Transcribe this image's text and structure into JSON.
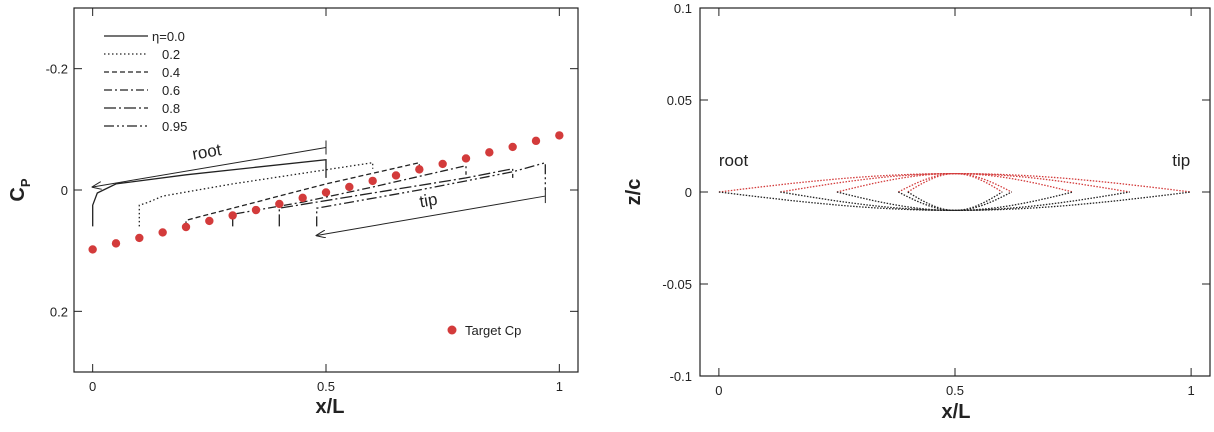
{
  "chart_data": [
    {
      "type": "line",
      "xlabel": "x/L",
      "ylabel": "C",
      "ylabel_sub": "P",
      "xlim": [
        -0.04,
        1.04
      ],
      "ylim": [
        -0.3,
        0.3
      ],
      "y_inverted": true,
      "xticks": [
        0,
        0.5,
        1
      ],
      "xtick_labels": [
        "0",
        "0.5",
        "1"
      ],
      "yticks": [
        -0.2,
        0,
        0.2
      ],
      "ytick_labels": [
        "-0.2",
        "0",
        "0.2"
      ],
      "grid": false,
      "legend_placement": "top-left",
      "series": [
        {
          "name": "η=0.0",
          "dash": "solid",
          "x": [
            0,
            0,
            0.01,
            0.05,
            0.2,
            0.5,
            0.5
          ],
          "y": [
            0.06,
            0.025,
            0.005,
            -0.01,
            -0.025,
            -0.05,
            -0.02
          ]
        },
        {
          "name": "0.2",
          "dash": "dot",
          "x": [
            0.1,
            0.1,
            0.12,
            0.15,
            0.3,
            0.6,
            0.6
          ],
          "y": [
            0.06,
            0.025,
            0.02,
            0.01,
            -0.01,
            -0.045,
            -0.035
          ]
        },
        {
          "name": "0.4",
          "dash": "dash",
          "x": [
            0.2,
            0.2,
            0.35,
            0.5,
            0.7,
            0.7
          ],
          "y": [
            0.06,
            0.05,
            0.02,
            -0.01,
            -0.045,
            -0.03
          ]
        },
        {
          "name": "0.6",
          "dash": "dashdot",
          "x": [
            0.3,
            0.3,
            0.45,
            0.6,
            0.8,
            0.8
          ],
          "y": [
            0.06,
            0.04,
            0.02,
            -0.005,
            -0.04,
            -0.025
          ]
        },
        {
          "name": "0.8",
          "dash": "longdashdot",
          "x": [
            0.4,
            0.4,
            0.6,
            0.8,
            0.9,
            0.9
          ],
          "y": [
            0.06,
            0.03,
            0.005,
            -0.02,
            -0.035,
            -0.02
          ]
        },
        {
          "name": "0.95",
          "dash": "dashdotdot",
          "x": [
            0.48,
            0.48,
            0.7,
            0.9,
            0.97,
            0.97
          ],
          "y": [
            0.06,
            0.03,
            0.0,
            -0.03,
            -0.045,
            0.0
          ]
        }
      ],
      "target": {
        "name": "Target Cp",
        "color": "#d33b3b",
        "x": [
          0,
          0.05,
          0.1,
          0.15,
          0.2,
          0.25,
          0.3,
          0.35,
          0.4,
          0.45,
          0.5,
          0.55,
          0.6,
          0.65,
          0.7,
          0.75,
          0.8,
          0.85,
          0.9,
          0.95,
          1.0
        ],
        "y": [
          0.098,
          0.088,
          0.079,
          0.07,
          0.061,
          0.051,
          0.042,
          0.033,
          0.023,
          0.013,
          0.004,
          -0.005,
          -0.015,
          -0.024,
          -0.034,
          -0.043,
          -0.052,
          -0.062,
          -0.071,
          -0.081,
          -0.09
        ]
      },
      "annotations": [
        {
          "text": "root",
          "arrow_from": [
            0.5,
            -0.07
          ],
          "arrow_to": [
            0.0,
            -0.005
          ]
        },
        {
          "text": "tip",
          "arrow_from": [
            0.97,
            0.01
          ],
          "arrow_to": [
            0.48,
            0.075
          ]
        }
      ]
    },
    {
      "type": "line",
      "xlabel": "x/L",
      "ylabel": "z/c",
      "xlim": [
        -0.04,
        1.04
      ],
      "ylim": [
        -0.1,
        0.1
      ],
      "xticks": [
        0,
        0.5,
        1
      ],
      "xtick_labels": [
        "0",
        "0.5",
        "1"
      ],
      "yticks": [
        -0.1,
        -0.05,
        0,
        0.05,
        0.1
      ],
      "ytick_labels": [
        "-0.1",
        "-0.05",
        "0",
        "0.05",
        "0.1"
      ],
      "grid": false,
      "upper_color": "#d33b3b",
      "lower_color": "#222222",
      "sections": [
        {
          "x_start": 0.0,
          "x_end": 1.0,
          "thickness": 0.01
        },
        {
          "x_start": 0.13,
          "x_end": 0.87,
          "thickness": 0.01
        },
        {
          "x_start": 0.25,
          "x_end": 0.75,
          "thickness": 0.01
        },
        {
          "x_start": 0.38,
          "x_end": 0.62,
          "thickness": 0.01
        },
        {
          "x_start": 0.4,
          "x_end": 0.6,
          "thickness": 0.01
        }
      ],
      "annotations": [
        {
          "text": "root",
          "x": 0.0,
          "y": 0.014
        },
        {
          "text": "tip",
          "x": 0.96,
          "y": 0.014
        }
      ]
    }
  ]
}
